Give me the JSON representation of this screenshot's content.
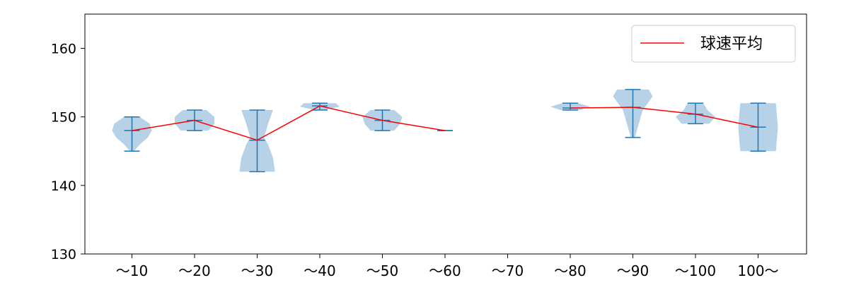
{
  "chart_data": {
    "type": "violin",
    "categories": [
      "～10",
      "～20",
      "～30",
      "～40",
      "～50",
      "～60",
      "～70",
      "～80",
      "～90",
      "～100",
      "100～"
    ],
    "ylim": [
      130,
      165
    ],
    "yticks": [
      130,
      140,
      150,
      160
    ],
    "grid": false,
    "legend": {
      "entries": [
        "球速平均"
      ],
      "placement": "top-right"
    },
    "colors": {
      "violin_fill": "#b7d1e6",
      "whisker": "#1f77b4",
      "mean_line": "#ff0000",
      "axes": "#000000"
    },
    "distributions": [
      {
        "category": "～10",
        "min": 145,
        "max": 150,
        "mean": 148.0,
        "width_profile": [
          [
            145,
            0.1
          ],
          [
            146,
            0.4
          ],
          [
            147,
            0.8
          ],
          [
            148,
            1.0
          ],
          [
            149,
            0.9
          ],
          [
            150,
            0.4
          ]
        ]
      },
      {
        "category": "～20",
        "min": 148,
        "max": 151,
        "mean": 149.5,
        "width_profile": [
          [
            148,
            0.7
          ],
          [
            149,
            1.0
          ],
          [
            150,
            1.0
          ],
          [
            151,
            0.6
          ]
        ]
      },
      {
        "category": "～30",
        "min": 142,
        "max": 151,
        "mean": 146.6,
        "width_profile": [
          [
            142,
            0.9
          ],
          [
            144,
            0.8
          ],
          [
            146,
            0.55
          ],
          [
            147,
            0.35
          ],
          [
            149,
            0.55
          ],
          [
            151,
            0.8
          ]
        ]
      },
      {
        "category": "～40",
        "min": 151,
        "max": 152,
        "mean": 151.6,
        "width_profile": [
          [
            151,
            0.25
          ],
          [
            151.5,
            1.0
          ],
          [
            152,
            0.8
          ]
        ]
      },
      {
        "category": "～50",
        "min": 148,
        "max": 151,
        "mean": 149.5,
        "width_profile": [
          [
            148,
            0.6
          ],
          [
            149,
            0.9
          ],
          [
            150,
            1.0
          ],
          [
            151,
            0.6
          ]
        ]
      },
      {
        "category": "～60",
        "min": 148,
        "max": 148,
        "mean": 148.0,
        "width_profile": []
      },
      {
        "category": "～70",
        "min": null,
        "max": null,
        "mean": null,
        "width_profile": []
      },
      {
        "category": "～80",
        "min": 151,
        "max": 152,
        "mean": 151.3,
        "width_profile": [
          [
            151,
            0.5
          ],
          [
            151.5,
            1.0
          ],
          [
            152,
            0.4
          ]
        ]
      },
      {
        "category": "～90",
        "min": 147,
        "max": 154,
        "mean": 151.4,
        "width_profile": [
          [
            147,
            0.1
          ],
          [
            149,
            0.3
          ],
          [
            151,
            0.5
          ],
          [
            153,
            1.0
          ],
          [
            154,
            0.8
          ]
        ]
      },
      {
        "category": "～100",
        "min": 149,
        "max": 152,
        "mean": 150.4,
        "width_profile": [
          [
            149,
            0.7
          ],
          [
            150,
            1.0
          ],
          [
            151,
            0.6
          ],
          [
            152,
            0.4
          ]
        ]
      },
      {
        "category": "100～",
        "min": 145,
        "max": 152,
        "mean": 148.5,
        "width_profile": [
          [
            145,
            0.9
          ],
          [
            148.5,
            1.0
          ],
          [
            152,
            0.9
          ]
        ]
      }
    ],
    "mean_series": {
      "name": "球速平均",
      "values": [
        148.0,
        149.5,
        146.6,
        151.6,
        149.5,
        148.0,
        null,
        151.3,
        151.4,
        150.4,
        148.5
      ]
    }
  }
}
